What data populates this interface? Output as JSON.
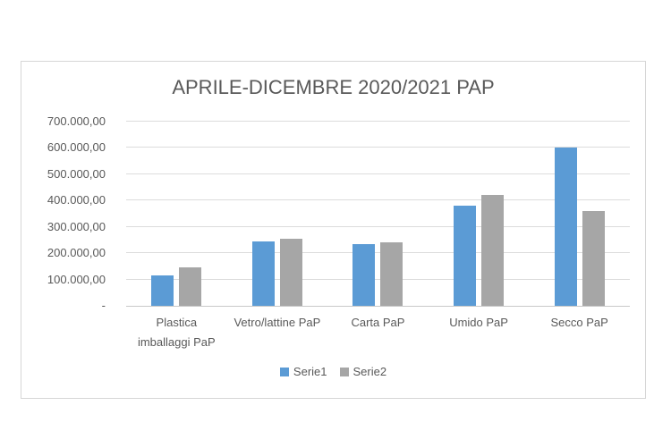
{
  "chart": {
    "colors": {
      "serie1": "#5b9bd5",
      "serie2": "#a6a6a6",
      "gridline": "#dcdcdc",
      "axis_line": "#c9c9c9",
      "text": "#595959",
      "frame_border": "#d6d6d6",
      "background": "#ffffff"
    }
  },
  "chart_data": {
    "type": "bar",
    "title": "APRILE-DICEMBRE 2020/2021 PAP",
    "categories": [
      "Plastica imballaggi PaP",
      "Vetro/lattine PaP",
      "Carta PaP",
      "Umido PaP",
      "Secco PaP"
    ],
    "series": [
      {
        "name": "Serie1",
        "color": "#5b9bd5",
        "values": [
          115000,
          245000,
          235000,
          380000,
          600000
        ]
      },
      {
        "name": "Serie2",
        "color": "#a6a6a6",
        "values": [
          145000,
          255000,
          240000,
          420000,
          360000
        ]
      }
    ],
    "xlabel": "",
    "ylabel": "",
    "ylim": [
      0,
      700000
    ],
    "ytick_step": 100000,
    "ytick_labels": [
      "-",
      "100.000,00",
      "200.000,00",
      "300.000,00",
      "400.000,00",
      "500.000,00",
      "600.000,00",
      "700.000,00"
    ],
    "grid": true,
    "legend_position": "bottom"
  }
}
